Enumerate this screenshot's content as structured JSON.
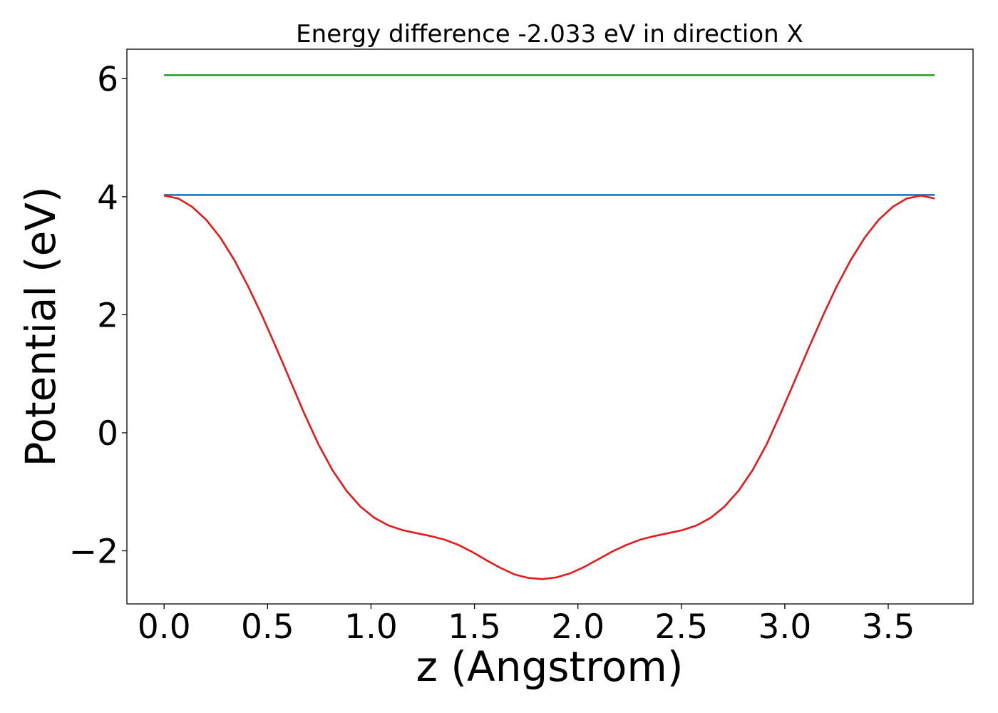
{
  "chart_data": {
    "type": "line",
    "title": "Energy difference -2.033 eV in direction X",
    "xlabel": "z (Angstrom)",
    "ylabel": "Potential (eV)",
    "xlim": [
      -0.18,
      3.91
    ],
    "ylim": [
      -2.9,
      6.5
    ],
    "x_ticks": [
      0.0,
      0.5,
      1.0,
      1.5,
      2.0,
      2.5,
      3.0,
      3.5
    ],
    "x_tick_labels": [
      "0.0",
      "0.5",
      "1.0",
      "1.5",
      "2.0",
      "2.5",
      "3.0",
      "3.5"
    ],
    "y_ticks": [
      -2,
      0,
      2,
      4,
      6
    ],
    "y_tick_labels": [
      "−2",
      "0",
      "2",
      "4",
      "6"
    ],
    "grid": false,
    "legend": "none",
    "series": [
      {
        "color": "#2ca02c",
        "x": [
          0.0,
          3.725
        ],
        "y": [
          6.06,
          6.06
        ]
      },
      {
        "color": "#1f77b4",
        "x": [
          0.0,
          3.725
        ],
        "y": [
          4.03,
          4.03
        ]
      },
      {
        "color": "#e41a1c",
        "x": [
          0.0,
          0.068,
          0.135,
          0.203,
          0.271,
          0.339,
          0.406,
          0.474,
          0.542,
          0.61,
          0.677,
          0.745,
          0.813,
          0.881,
          0.948,
          1.016,
          1.084,
          1.152,
          1.219,
          1.287,
          1.355,
          1.422,
          1.49,
          1.558,
          1.626,
          1.693,
          1.761,
          1.829,
          1.897,
          1.964,
          2.032,
          2.1,
          2.168,
          2.235,
          2.303,
          2.371,
          2.438,
          2.506,
          2.574,
          2.642,
          2.709,
          2.777,
          2.845,
          2.913,
          2.98,
          3.048,
          3.116,
          3.184,
          3.251,
          3.319,
          3.387,
          3.454,
          3.522,
          3.59,
          3.658,
          3.725
        ],
        "y": [
          4.02,
          3.97,
          3.83,
          3.61,
          3.31,
          2.93,
          2.48,
          1.98,
          1.44,
          0.88,
          0.33,
          -0.19,
          -0.63,
          -0.98,
          -1.25,
          -1.44,
          -1.57,
          -1.65,
          -1.7,
          -1.75,
          -1.81,
          -1.9,
          -2.02,
          -2.16,
          -2.29,
          -2.4,
          -2.46,
          -2.48,
          -2.45,
          -2.38,
          -2.27,
          -2.14,
          -2.01,
          -1.9,
          -1.81,
          -1.75,
          -1.7,
          -1.65,
          -1.57,
          -1.44,
          -1.25,
          -0.98,
          -0.63,
          -0.19,
          0.33,
          0.88,
          1.44,
          1.98,
          2.48,
          2.93,
          3.31,
          3.61,
          3.83,
          3.97,
          4.02,
          3.97
        ]
      }
    ]
  }
}
